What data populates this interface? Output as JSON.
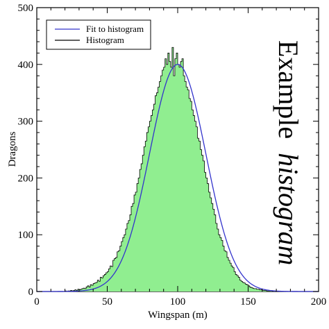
{
  "chart_data": {
    "type": "histogram",
    "xlabel": "Wingspan (m)",
    "ylabel": "Dragons",
    "title_main": "Example",
    "title_italic": "histogram",
    "xlim": [
      0,
      200
    ],
    "ylim": [
      0,
      500
    ],
    "xticks": [
      0,
      50,
      100,
      150,
      200
    ],
    "yticks": [
      0,
      100,
      200,
      300,
      400,
      500
    ],
    "bin_width": 1,
    "series": [
      {
        "name": "Fit to histogram",
        "kind": "gaussian_fit",
        "mu": 100,
        "sigma": 20,
        "amplitude": 400,
        "color": "#3333cc"
      },
      {
        "name": "Histogram",
        "kind": "histogram",
        "color": "#000000",
        "fill": "#90ee90"
      }
    ],
    "histogram_counts": [
      0,
      0,
      0,
      0,
      0,
      0,
      0,
      0,
      0,
      0,
      0,
      0,
      0,
      0,
      0,
      0,
      0,
      0,
      0,
      0,
      1,
      0,
      1,
      1,
      2,
      1,
      2,
      3,
      2,
      4,
      3,
      4,
      5,
      6,
      5,
      8,
      10,
      8,
      12,
      11,
      14,
      15,
      16,
      20,
      18,
      25,
      24,
      28,
      30,
      33,
      35,
      40,
      45,
      44,
      55,
      58,
      60,
      70,
      72,
      80,
      88,
      95,
      100,
      110,
      120,
      125,
      135,
      150,
      155,
      170,
      175,
      190,
      200,
      215,
      225,
      240,
      255,
      265,
      280,
      290,
      300,
      310,
      320,
      330,
      345,
      350,
      360,
      370,
      380,
      390,
      395,
      410,
      400,
      420,
      405,
      395,
      430,
      380,
      410,
      420,
      400,
      395,
      405,
      410,
      380,
      370,
      360,
      355,
      340,
      335,
      320,
      310,
      300,
      290,
      270,
      265,
      250,
      240,
      230,
      210,
      200,
      190,
      175,
      165,
      155,
      145,
      135,
      120,
      110,
      100,
      95,
      90,
      80,
      72,
      70,
      60,
      55,
      50,
      45,
      42,
      35,
      30,
      28,
      25,
      20,
      18,
      16,
      15,
      13,
      12,
      10,
      8,
      7,
      6,
      5,
      5,
      4,
      4,
      3,
      3,
      2,
      2,
      2,
      1,
      1,
      1,
      1,
      0,
      1,
      0,
      0,
      0,
      0,
      0,
      0,
      0,
      0,
      0,
      0,
      0,
      0,
      0,
      0,
      0,
      0,
      0,
      0,
      0,
      0,
      0,
      0,
      0,
      0,
      0,
      0,
      0,
      0,
      0,
      0,
      0
    ]
  },
  "legend": {
    "fit_label": "Fit to histogram",
    "hist_label": "Histogram"
  },
  "title": {
    "main": "Example",
    "italic": "histogram"
  },
  "axes": {
    "xlabel": "Wingspan (m)",
    "ylabel": "Dragons",
    "xtick_labels": [
      "0",
      "50",
      "100",
      "150",
      "200"
    ],
    "ytick_labels": [
      "0",
      "100",
      "200",
      "300",
      "400",
      "500"
    ]
  }
}
